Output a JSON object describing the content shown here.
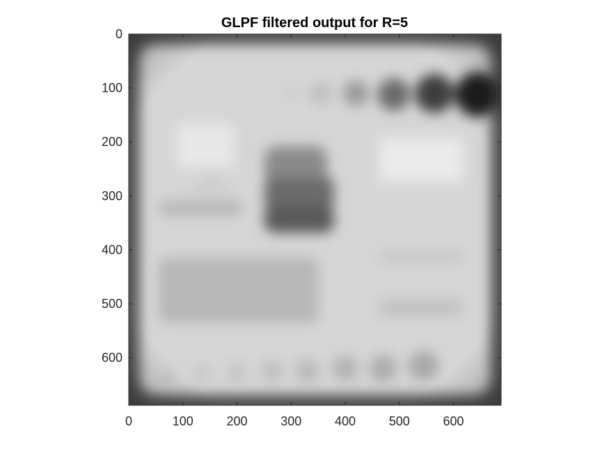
{
  "figure": {
    "title": "GLPF filtered output for R=5",
    "image_description_colormap": "gray"
  },
  "axes": {
    "x_ticks": [
      "0",
      "100",
      "200",
      "300",
      "400",
      "500",
      "600"
    ],
    "y_ticks": [
      "0",
      "100",
      "200",
      "300",
      "400",
      "500",
      "600"
    ],
    "x_tick_values": [
      0,
      100,
      200,
      300,
      400,
      500,
      600
    ],
    "y_tick_values": [
      0,
      100,
      200,
      300,
      400,
      500,
      600
    ],
    "xlim": [
      0,
      688
    ],
    "ylim": [
      0,
      688
    ],
    "y_direction": "reversed",
    "colors": {
      "axis": "#262626",
      "background": "#ffffff"
    }
  },
  "image": {
    "width_data": 688,
    "height_data": 688,
    "base_gray": "#dcdcdc",
    "border_gray": "#3a3a3a",
    "dots_top": [
      {
        "cx": 250,
        "cy": 105,
        "r": 12,
        "shade": "#d8d8d8"
      },
      {
        "cx": 300,
        "cy": 110,
        "r": 16,
        "shade": "#cfcfcf"
      },
      {
        "cx": 355,
        "cy": 110,
        "r": 20,
        "shade": "#bdbdbd"
      },
      {
        "cx": 420,
        "cy": 110,
        "r": 24,
        "shade": "#9a9a9a"
      },
      {
        "cx": 490,
        "cy": 112,
        "r": 30,
        "shade": "#6a6a6a"
      },
      {
        "cx": 565,
        "cy": 110,
        "r": 36,
        "shade": "#3c3c3c"
      },
      {
        "cx": 645,
        "cy": 112,
        "r": 42,
        "shade": "#1e1e1e"
      }
    ],
    "dots_bottom": [
      {
        "cx": 75,
        "cy": 635,
        "r": 15,
        "shade": "#c8c8c8"
      },
      {
        "cx": 135,
        "cy": 630,
        "r": 16,
        "shade": "#c5c5c5"
      },
      {
        "cx": 200,
        "cy": 628,
        "r": 18,
        "shade": "#c2c2c2"
      },
      {
        "cx": 265,
        "cy": 625,
        "r": 20,
        "shade": "#bdbdbd"
      },
      {
        "cx": 330,
        "cy": 625,
        "r": 22,
        "shade": "#b8b8b8"
      },
      {
        "cx": 400,
        "cy": 620,
        "r": 24,
        "shade": "#b3b3b3"
      },
      {
        "cx": 470,
        "cy": 620,
        "r": 26,
        "shade": "#adadad"
      },
      {
        "cx": 545,
        "cy": 615,
        "r": 28,
        "shade": "#a8a8a8"
      }
    ]
  }
}
